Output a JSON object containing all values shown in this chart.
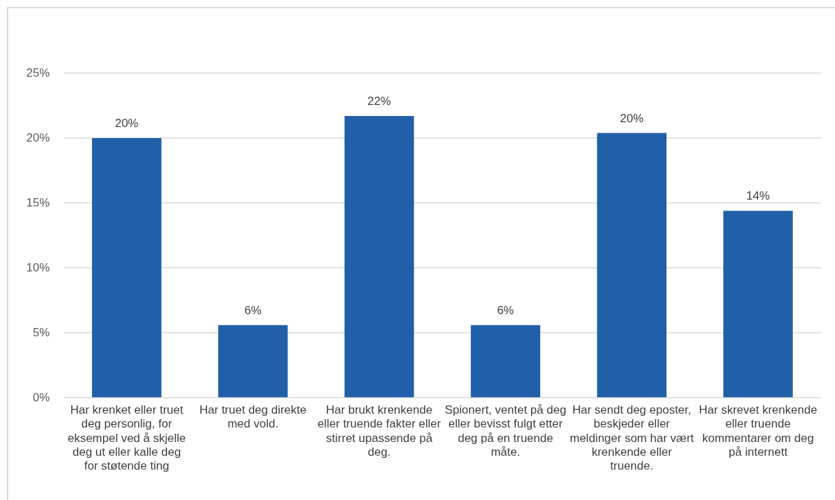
{
  "chart_data": {
    "type": "bar",
    "categories": [
      "Har krenket eller truet deg personlig, for eksempel ved å skjelle deg ut eller kalle deg for støtende ting",
      "Har truet deg direkte med vold.",
      "Har brukt krenkende eller truende fakter eller stirret upassende på deg.",
      "Spionert, ventet på deg eller bevisst fulgt etter deg på en truende måte.",
      "Har sendt deg eposter, beskjeder eller meldinger som har vært krenkende eller truende.",
      "Har skrevet krenkende eller truende kommentarer om deg på internett"
    ],
    "values": [
      20,
      5.6,
      21.7,
      5.6,
      20.4,
      14.4
    ],
    "value_labels": [
      "20%",
      "6%",
      "22%",
      "6%",
      "20%",
      "14%"
    ],
    "color": "#2160a8",
    "ylim": [
      0,
      25
    ],
    "yticks": [
      {
        "value": 0,
        "label": "0%"
      },
      {
        "value": 5,
        "label": "5%"
      },
      {
        "value": 10,
        "label": "10%"
      },
      {
        "value": 15,
        "label": "15%"
      },
      {
        "value": 20,
        "label": "20%"
      },
      {
        "value": 25,
        "label": "25%"
      }
    ],
    "grid": "y",
    "legend": false
  }
}
